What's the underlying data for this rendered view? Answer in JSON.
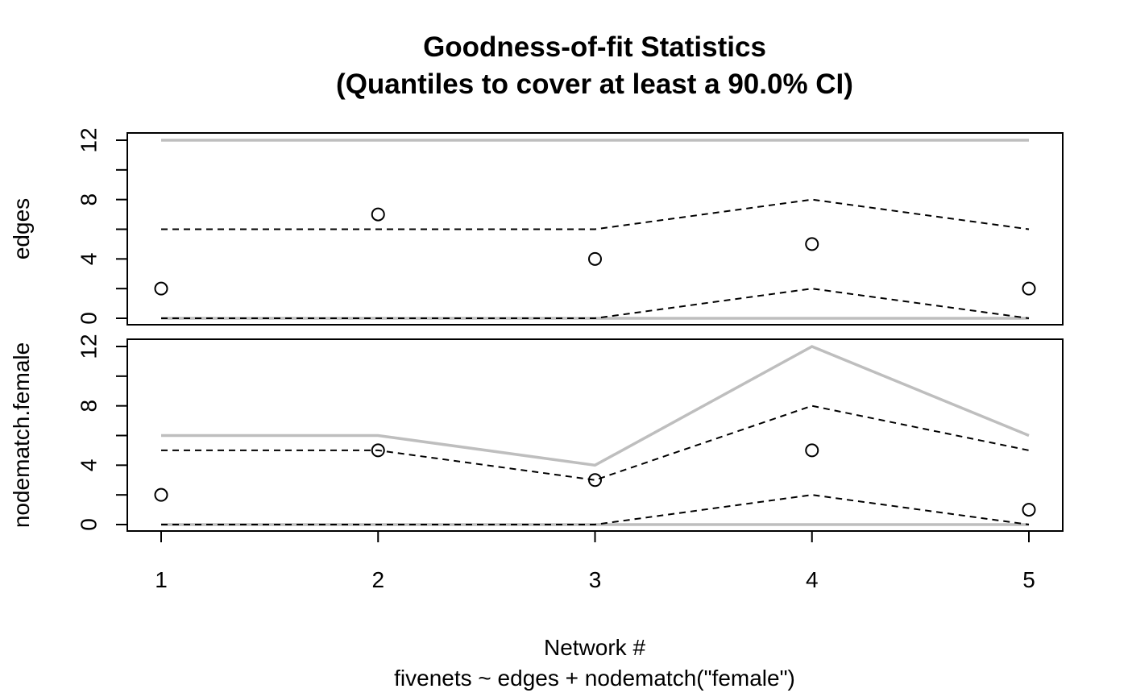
{
  "chart_data": {
    "type": "line",
    "title": "Goodness-of-fit Statistics",
    "subtitle": "(Quantiles to cover at least a 90.0% CI)",
    "xlabel": "Network #",
    "xlabel2": "fivenets ~ edges + nodematch(\"female\")",
    "x": [
      1,
      2,
      3,
      4,
      5
    ],
    "x_ticks": [
      "1",
      "2",
      "3",
      "4",
      "5"
    ],
    "panels": [
      {
        "ylabel": "edges",
        "ylim": [
          0,
          12
        ],
        "y_tick_labels": [
          "0",
          "4",
          "8",
          "12"
        ],
        "y_tick_values": [
          0,
          4,
          8,
          12
        ],
        "series": [
          {
            "role": "observed",
            "style": "points",
            "values": [
              2,
              7,
              4,
              5,
              2
            ]
          },
          {
            "role": "ci-upper",
            "style": "dashed",
            "values": [
              6,
              6,
              6,
              8,
              6
            ]
          },
          {
            "role": "ci-lower",
            "style": "dashed",
            "values": [
              0,
              0,
              0,
              2,
              0
            ]
          },
          {
            "role": "bound-upper",
            "style": "gray",
            "values": [
              12,
              12,
              12,
              12,
              12
            ]
          },
          {
            "role": "bound-lower",
            "style": "gray",
            "values": [
              0,
              0,
              0,
              0,
              0
            ]
          }
        ]
      },
      {
        "ylabel": "nodematch.female",
        "ylim": [
          0,
          12
        ],
        "y_tick_labels": [
          "0",
          "4",
          "8",
          "12"
        ],
        "y_tick_values": [
          0,
          4,
          8,
          12
        ],
        "series": [
          {
            "role": "observed",
            "style": "points",
            "values": [
              2,
              5,
              3,
              5,
              1
            ]
          },
          {
            "role": "ci-upper",
            "style": "dashed",
            "values": [
              5,
              5,
              3,
              8,
              5
            ]
          },
          {
            "role": "ci-lower",
            "style": "dashed",
            "values": [
              0,
              0,
              0,
              2,
              0
            ]
          },
          {
            "role": "bound-upper",
            "style": "gray",
            "values": [
              6,
              6,
              4,
              12,
              6
            ]
          },
          {
            "role": "bound-lower",
            "style": "gray",
            "values": [
              0,
              0,
              0,
              0,
              0
            ]
          }
        ]
      }
    ],
    "colors": {
      "observed": "#000000",
      "ci": "#000000",
      "bound": "#bebebe"
    },
    "grid": false
  }
}
